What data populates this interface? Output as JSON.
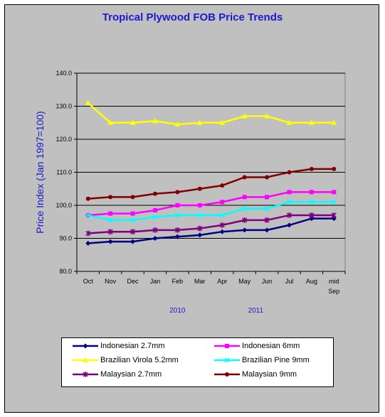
{
  "chart_data": {
    "type": "line",
    "title": "Tropical Plywood FOB Price Trends",
    "ylabel": "Price Index (Jan 1997=100)",
    "ylim": [
      80,
      140
    ],
    "yticks": [
      "140.0",
      "130.0",
      "120.0",
      "110.0",
      "100.0",
      "90.0",
      "80.0"
    ],
    "categories": [
      "Oct",
      "Nov",
      "Dec",
      "Jan",
      "Feb",
      "Mar",
      "Apr",
      "May",
      "Jun",
      "Jul",
      "Aug",
      "mid Sep"
    ],
    "category_lines": [
      [
        "Oct"
      ],
      [
        "Nov"
      ],
      [
        "Dec"
      ],
      [
        "Jan"
      ],
      [
        "Feb"
      ],
      [
        "Mar"
      ],
      [
        "Apr"
      ],
      [
        "May"
      ],
      [
        "Jun"
      ],
      [
        "Jul"
      ],
      [
        "Aug"
      ],
      [
        "mid",
        "Sep"
      ]
    ],
    "year_labels": [
      {
        "label": "2010",
        "at_category": 4.5
      },
      {
        "label": "2011",
        "at_category": 8.0
      }
    ],
    "grid": "horizontal",
    "legend_placement": "bottom",
    "series": [
      {
        "name": "Indonesian 2.7mm",
        "color": "#000080",
        "marker": "diamond",
        "values": [
          88.5,
          89.0,
          89.0,
          90.0,
          90.5,
          91.0,
          92.0,
          92.5,
          92.5,
          94.0,
          96.0,
          96.0
        ]
      },
      {
        "name": "Indonesian 6mm",
        "color": "#ff00ff",
        "marker": "square",
        "values": [
          97.0,
          97.5,
          97.5,
          98.5,
          100.0,
          100.0,
          101.0,
          102.5,
          102.5,
          104.0,
          104.0,
          104.0
        ]
      },
      {
        "name": "Brazilian Virola 5.2mm",
        "color": "#ffff00",
        "marker": "triangle",
        "values": [
          131.0,
          125.0,
          125.0,
          125.5,
          124.5,
          125.0,
          125.0,
          127.0,
          127.0,
          125.0,
          125.0,
          125.0
        ]
      },
      {
        "name": "Brazilian Pine 9mm",
        "color": "#00ffff",
        "marker": "x",
        "values": [
          97.0,
          95.5,
          95.5,
          96.5,
          97.0,
          97.0,
          97.0,
          99.0,
          99.0,
          101.0,
          101.0,
          101.0
        ]
      },
      {
        "name": "Malaysian 2.7mm",
        "color": "#800080",
        "marker": "star",
        "values": [
          91.5,
          92.0,
          92.0,
          92.5,
          92.5,
          93.0,
          94.0,
          95.5,
          95.5,
          97.0,
          97.0,
          97.0
        ]
      },
      {
        "name": "Malaysian 9mm",
        "color": "#800000",
        "marker": "circle",
        "values": [
          102.0,
          102.5,
          102.5,
          103.5,
          104.0,
          105.0,
          106.0,
          108.5,
          108.5,
          110.0,
          111.0,
          111.0
        ]
      }
    ]
  }
}
